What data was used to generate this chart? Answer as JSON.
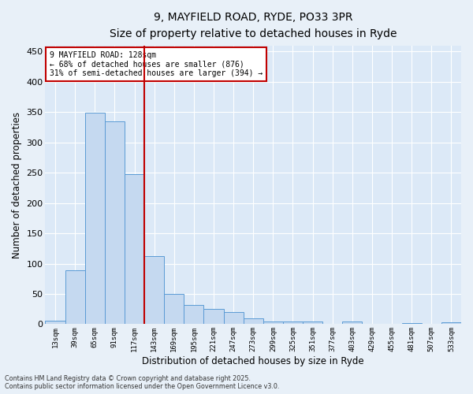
{
  "title_line1": "9, MAYFIELD ROAD, RYDE, PO33 3PR",
  "title_line2": "Size of property relative to detached houses in Ryde",
  "xlabel": "Distribution of detached houses by size in Ryde",
  "ylabel": "Number of detached properties",
  "categories": [
    "13sqm",
    "39sqm",
    "65sqm",
    "91sqm",
    "117sqm",
    "143sqm",
    "169sqm",
    "195sqm",
    "221sqm",
    "247sqm",
    "273sqm",
    "299sqm",
    "325sqm",
    "351sqm",
    "377sqm",
    "403sqm",
    "429sqm",
    "455sqm",
    "481sqm",
    "507sqm",
    "533sqm"
  ],
  "values": [
    6,
    89,
    349,
    335,
    247,
    112,
    50,
    32,
    25,
    20,
    10,
    5,
    4,
    4,
    0,
    4,
    0,
    0,
    2,
    0,
    3
  ],
  "bar_color": "#c5d9f0",
  "bar_edge_color": "#5b9bd5",
  "background_color": "#dce9f7",
  "grid_color": "#ffffff",
  "fig_background_color": "#e8f0f8",
  "vline_x": 4.5,
  "vline_color": "#c00000",
  "annotation_text": "9 MAYFIELD ROAD: 128sqm\n← 68% of detached houses are smaller (876)\n31% of semi-detached houses are larger (394) →",
  "annotation_box_color": "#c00000",
  "footer_line1": "Contains HM Land Registry data © Crown copyright and database right 2025.",
  "footer_line2": "Contains public sector information licensed under the Open Government Licence v3.0.",
  "ylim": [
    0,
    460
  ],
  "yticks": [
    0,
    50,
    100,
    150,
    200,
    250,
    300,
    350,
    400,
    450
  ]
}
